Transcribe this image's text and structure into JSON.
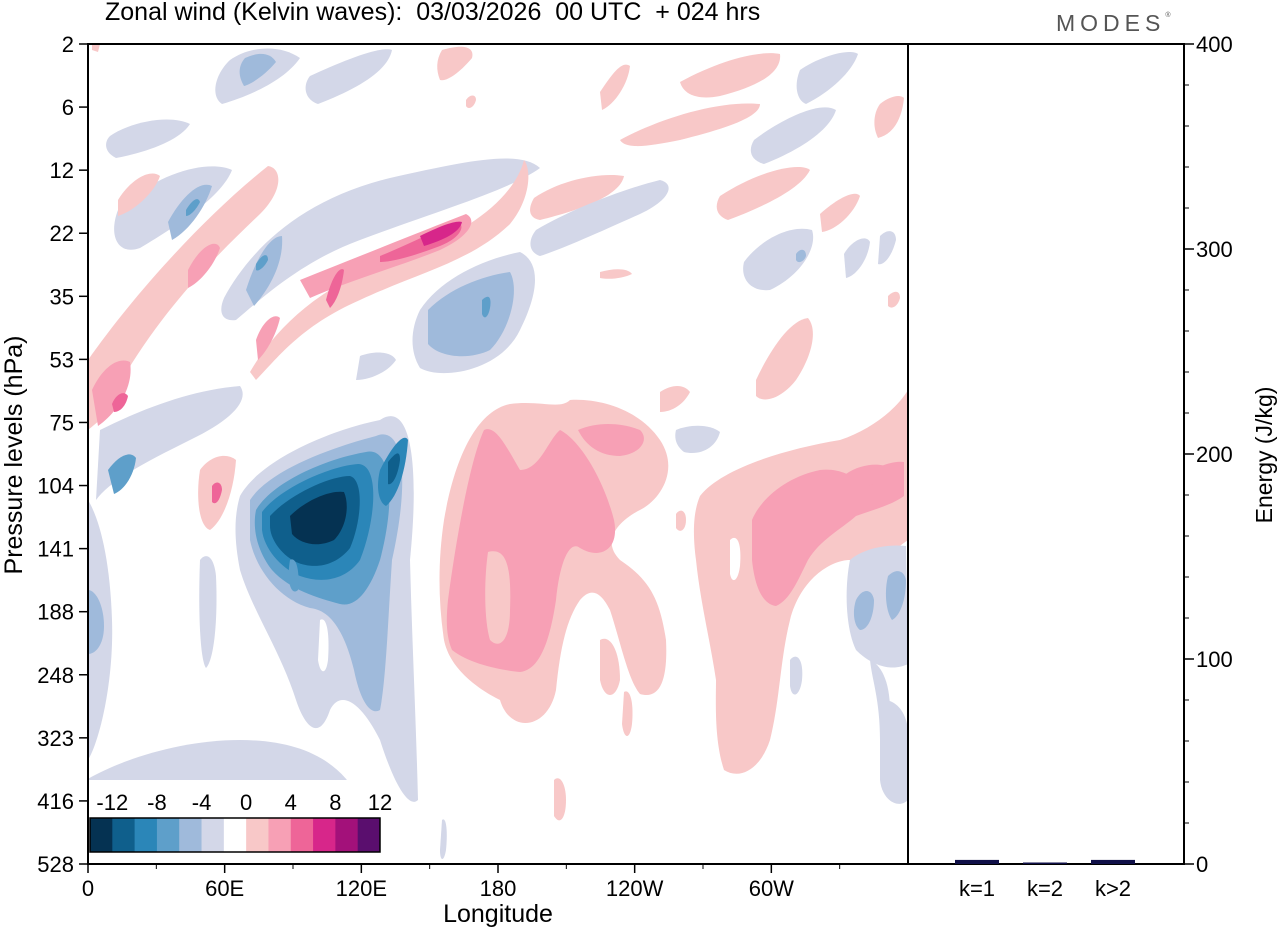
{
  "header": {
    "title": "Zonal wind (Kelvin waves):  03/03/2026  00 UTC  + 024 hrs",
    "logo": "MODES",
    "logo_mark": "®"
  },
  "chart_data": [
    {
      "type": "heatmap",
      "title": "Zonal wind (Kelvin waves):  03/03/2026  00 UTC  + 024 hrs",
      "xlabel": "Longitude",
      "ylabel": "Pressure levels (hPa)",
      "x_ticks": [
        "0",
        "60E",
        "120E",
        "180",
        "120W",
        "60W"
      ],
      "x_tick_degrees": [
        0,
        60,
        120,
        180,
        240,
        300
      ],
      "xlim": [
        0,
        360
      ],
      "y_ticks": [
        "2",
        "6",
        "12",
        "22",
        "35",
        "53",
        "75",
        "104",
        "141",
        "188",
        "248",
        "323",
        "416",
        "528"
      ],
      "y_order": "top-to-bottom",
      "colorbar": {
        "labels": [
          "-12",
          "-8",
          "-4",
          "0",
          "4",
          "8",
          "12"
        ],
        "levels": [
          -14,
          -12,
          -10,
          -8,
          -6,
          -4,
          -2,
          2,
          4,
          6,
          8,
          10,
          12,
          14
        ],
        "colors": [
          "#053252",
          "#0f5f8c",
          "#2b86b8",
          "#5e9fca",
          "#9fbadb",
          "#d3d7e8",
          "#ffffff",
          "#f8c8c8",
          "#f7a0b5",
          "#ee6598",
          "#d7268a",
          "#a3117a",
          "#5a0e6e"
        ]
      },
      "features": [
        {
          "sign": "negative",
          "center_lon": 100,
          "center_level": 125,
          "peak": -14
        },
        {
          "sign": "positive",
          "center_lon": 190,
          "center_level": 130,
          "peak": 6
        },
        {
          "sign": "positive",
          "center_lon": 295,
          "center_level": 140,
          "peak": 6
        },
        {
          "sign": "positive",
          "center_lon": 10,
          "center_level": 70,
          "peak": 8
        },
        {
          "sign": "positive",
          "center_lon": 150,
          "center_level": 22,
          "peak": 10
        },
        {
          "sign": "negative",
          "center_lon": 165,
          "center_level": 40,
          "peak": -6
        }
      ]
    },
    {
      "type": "bar",
      "categories": [
        "k=1",
        "k=2",
        "k>2"
      ],
      "values": [
        2,
        0.5,
        2
      ],
      "ylabel": "Energy (J/kg)",
      "ylim": [
        0,
        400
      ],
      "y_ticks": [
        0,
        100,
        200,
        300,
        400
      ],
      "colors": {
        "bar": "#101048"
      }
    }
  ]
}
